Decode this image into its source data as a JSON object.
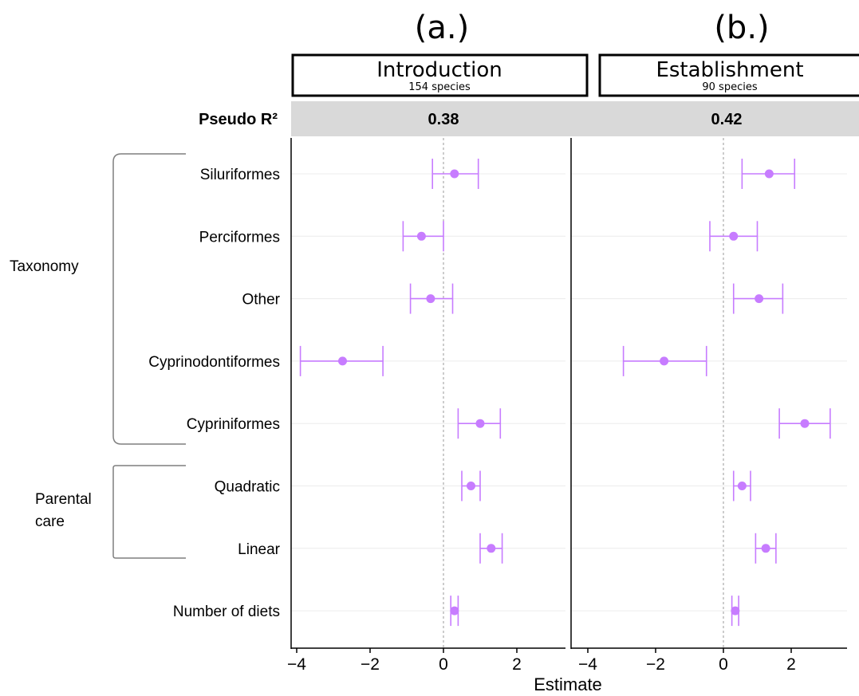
{
  "chart_data": {
    "type": "forest",
    "xlabel": "Estimate",
    "xticks": [
      "−4",
      "−2",
      "0",
      "2"
    ],
    "xlim": [
      -4.2,
      3.4
    ],
    "r2_label": "Pseudo R²",
    "color": "#c77cff",
    "terms": [
      "Siluriformes",
      "Perciformes",
      "Other ",
      "Cyprinodontiformes",
      "Cypriniformes",
      "Quadratic",
      "Linear ",
      "Number of diets"
    ],
    "groups": [
      {
        "label_lines": [
          "Taxonomy"
        ]
      },
      {
        "label_lines": [
          "Parental",
          "care"
        ]
      }
    ],
    "panels": [
      {
        "letter": "(a.)",
        "title": "Introduction",
        "subtitle": "154 species",
        "pseudo_r2": "0.38",
        "estimates": [
          {
            "term": "Siluriformes",
            "est": 0.3,
            "lo": -0.3,
            "hi": 0.95
          },
          {
            "term": "Perciformes",
            "est": -0.6,
            "lo": -1.1,
            "hi": 0.0
          },
          {
            "term": "Other",
            "est": -0.35,
            "lo": -0.9,
            "hi": 0.25
          },
          {
            "term": "Cyprinodontiformes",
            "est": -2.75,
            "lo": -3.9,
            "hi": -1.65
          },
          {
            "term": "Cypriniformes",
            "est": 1.0,
            "lo": 0.4,
            "hi": 1.55
          },
          {
            "term": "Quadratic",
            "est": 0.75,
            "lo": 0.5,
            "hi": 1.0
          },
          {
            "term": "Linear",
            "est": 1.3,
            "lo": 1.0,
            "hi": 1.6
          },
          {
            "term": "Number of diets",
            "est": 0.3,
            "lo": 0.2,
            "hi": 0.4
          }
        ]
      },
      {
        "letter": "(b.)",
        "title": "Establishment",
        "subtitle": "90 species",
        "pseudo_r2": "0.42",
        "estimates": [
          {
            "term": "Siluriformes",
            "est": 1.35,
            "lo": 0.55,
            "hi": 2.1
          },
          {
            "term": "Perciformes",
            "est": 0.3,
            "lo": -0.4,
            "hi": 1.0
          },
          {
            "term": "Other",
            "est": 1.05,
            "lo": 0.3,
            "hi": 1.75
          },
          {
            "term": "Cyprinodontiformes",
            "est": -1.75,
            "lo": -2.95,
            "hi": -0.5
          },
          {
            "term": "Cypriniformes",
            "est": 2.4,
            "lo": 1.65,
            "hi": 3.15
          },
          {
            "term": "Quadratic",
            "est": 0.55,
            "lo": 0.3,
            "hi": 0.8
          },
          {
            "term": "Linear",
            "est": 1.25,
            "lo": 0.95,
            "hi": 1.55
          },
          {
            "term": "Number of diets",
            "est": 0.35,
            "lo": 0.25,
            "hi": 0.45
          }
        ]
      }
    ]
  }
}
